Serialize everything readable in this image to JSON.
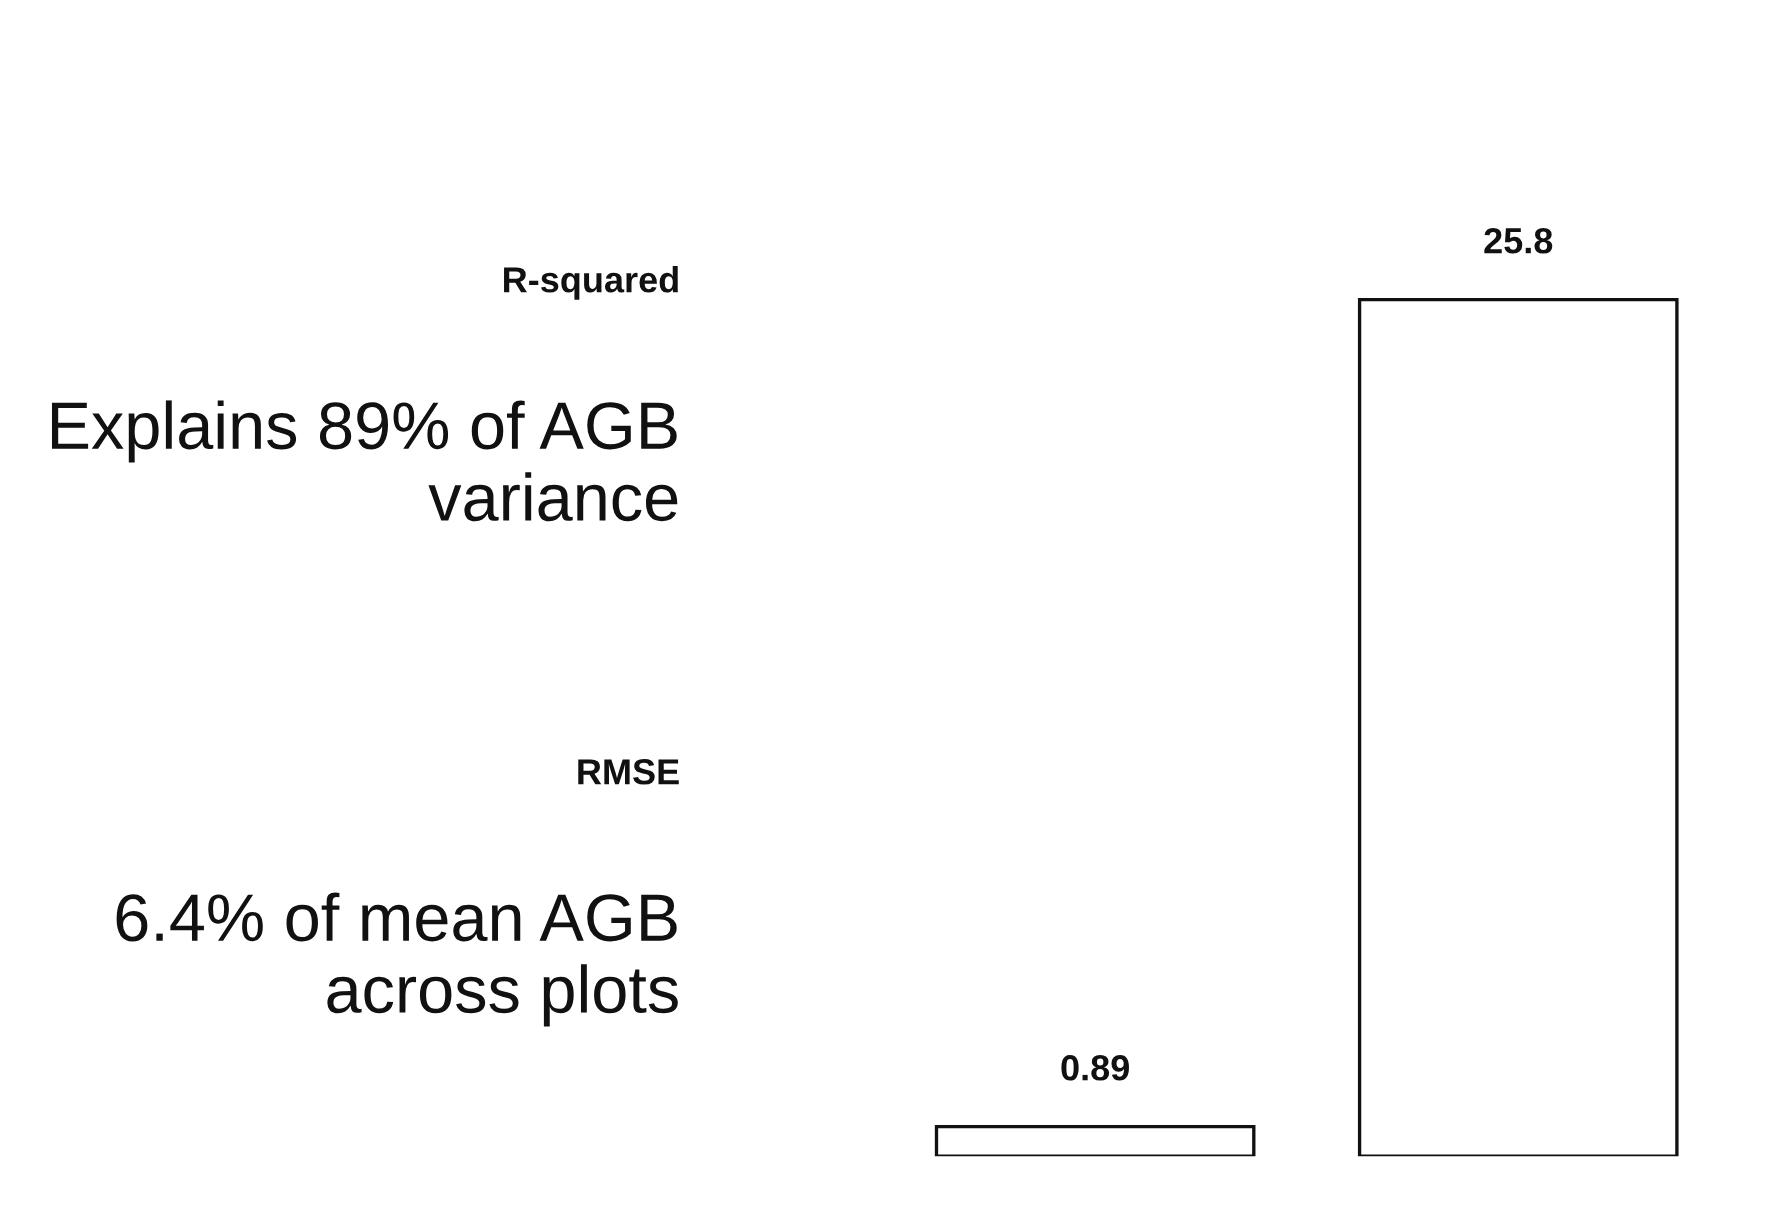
{
  "chart_data": {
    "type": "bar",
    "categories": [
      null,
      null
    ],
    "values": [
      0.89,
      25.8
    ],
    "color": "#ffffff",
    "data_labels": true,
    "grid": false,
    "legend": false,
    "tick_labels": false,
    "annotations": [
      "R-squared",
      "Explains 89% of AGB variance",
      "RMSE",
      "6.4% of mean AGB across plots"
    ]
  }
}
